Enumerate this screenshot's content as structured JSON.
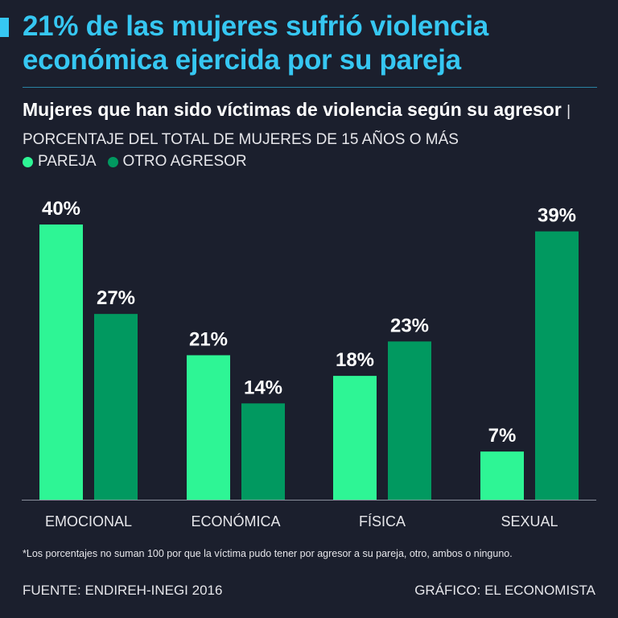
{
  "headline": "21% de las mujeres sufrió violencia económica ejercida por su pareja",
  "subtitle_bold": "Mujeres que han sido víctimas de violencia según su agresor",
  "subtitle_light": "| PORCENTAJE DEL TOTAL DE MUJERES DE 15 AÑOS O MÁS",
  "colors": {
    "accent": "#36c7f2",
    "pareja": "#2ef595",
    "otro": "#019960",
    "background": "#1b1f2d"
  },
  "chart_data": {
    "type": "bar",
    "title": "Mujeres que han sido víctimas de violencia según su agresor",
    "ylabel": "PORCENTAJE DEL TOTAL DE MUJERES DE 15 AÑOS O MÁS",
    "xlabel": "",
    "ylim": [
      0,
      40
    ],
    "categories": [
      "EMOCIONAL",
      "ECONÓMICA",
      "FÍSICA",
      "SEXUAL"
    ],
    "series": [
      {
        "name": "PAREJA",
        "values": [
          40,
          21,
          18,
          7
        ],
        "labels": [
          "40%",
          "21%",
          "18%",
          "7%"
        ]
      },
      {
        "name": "OTRO AGRESOR",
        "values": [
          27,
          14,
          23,
          39
        ],
        "labels": [
          "27%",
          "14%",
          "23%",
          "39%"
        ]
      }
    ],
    "legend": "top-left",
    "grid": false
  },
  "footnote": "*Los porcentajes no suman 100 por que la víctima pudo tener por agresor a su pareja, otro, ambos o ninguno.",
  "source": "FUENTE: ENDIREH-INEGI 2016",
  "credit": "GRÁFICO: EL ECONOMISTA"
}
